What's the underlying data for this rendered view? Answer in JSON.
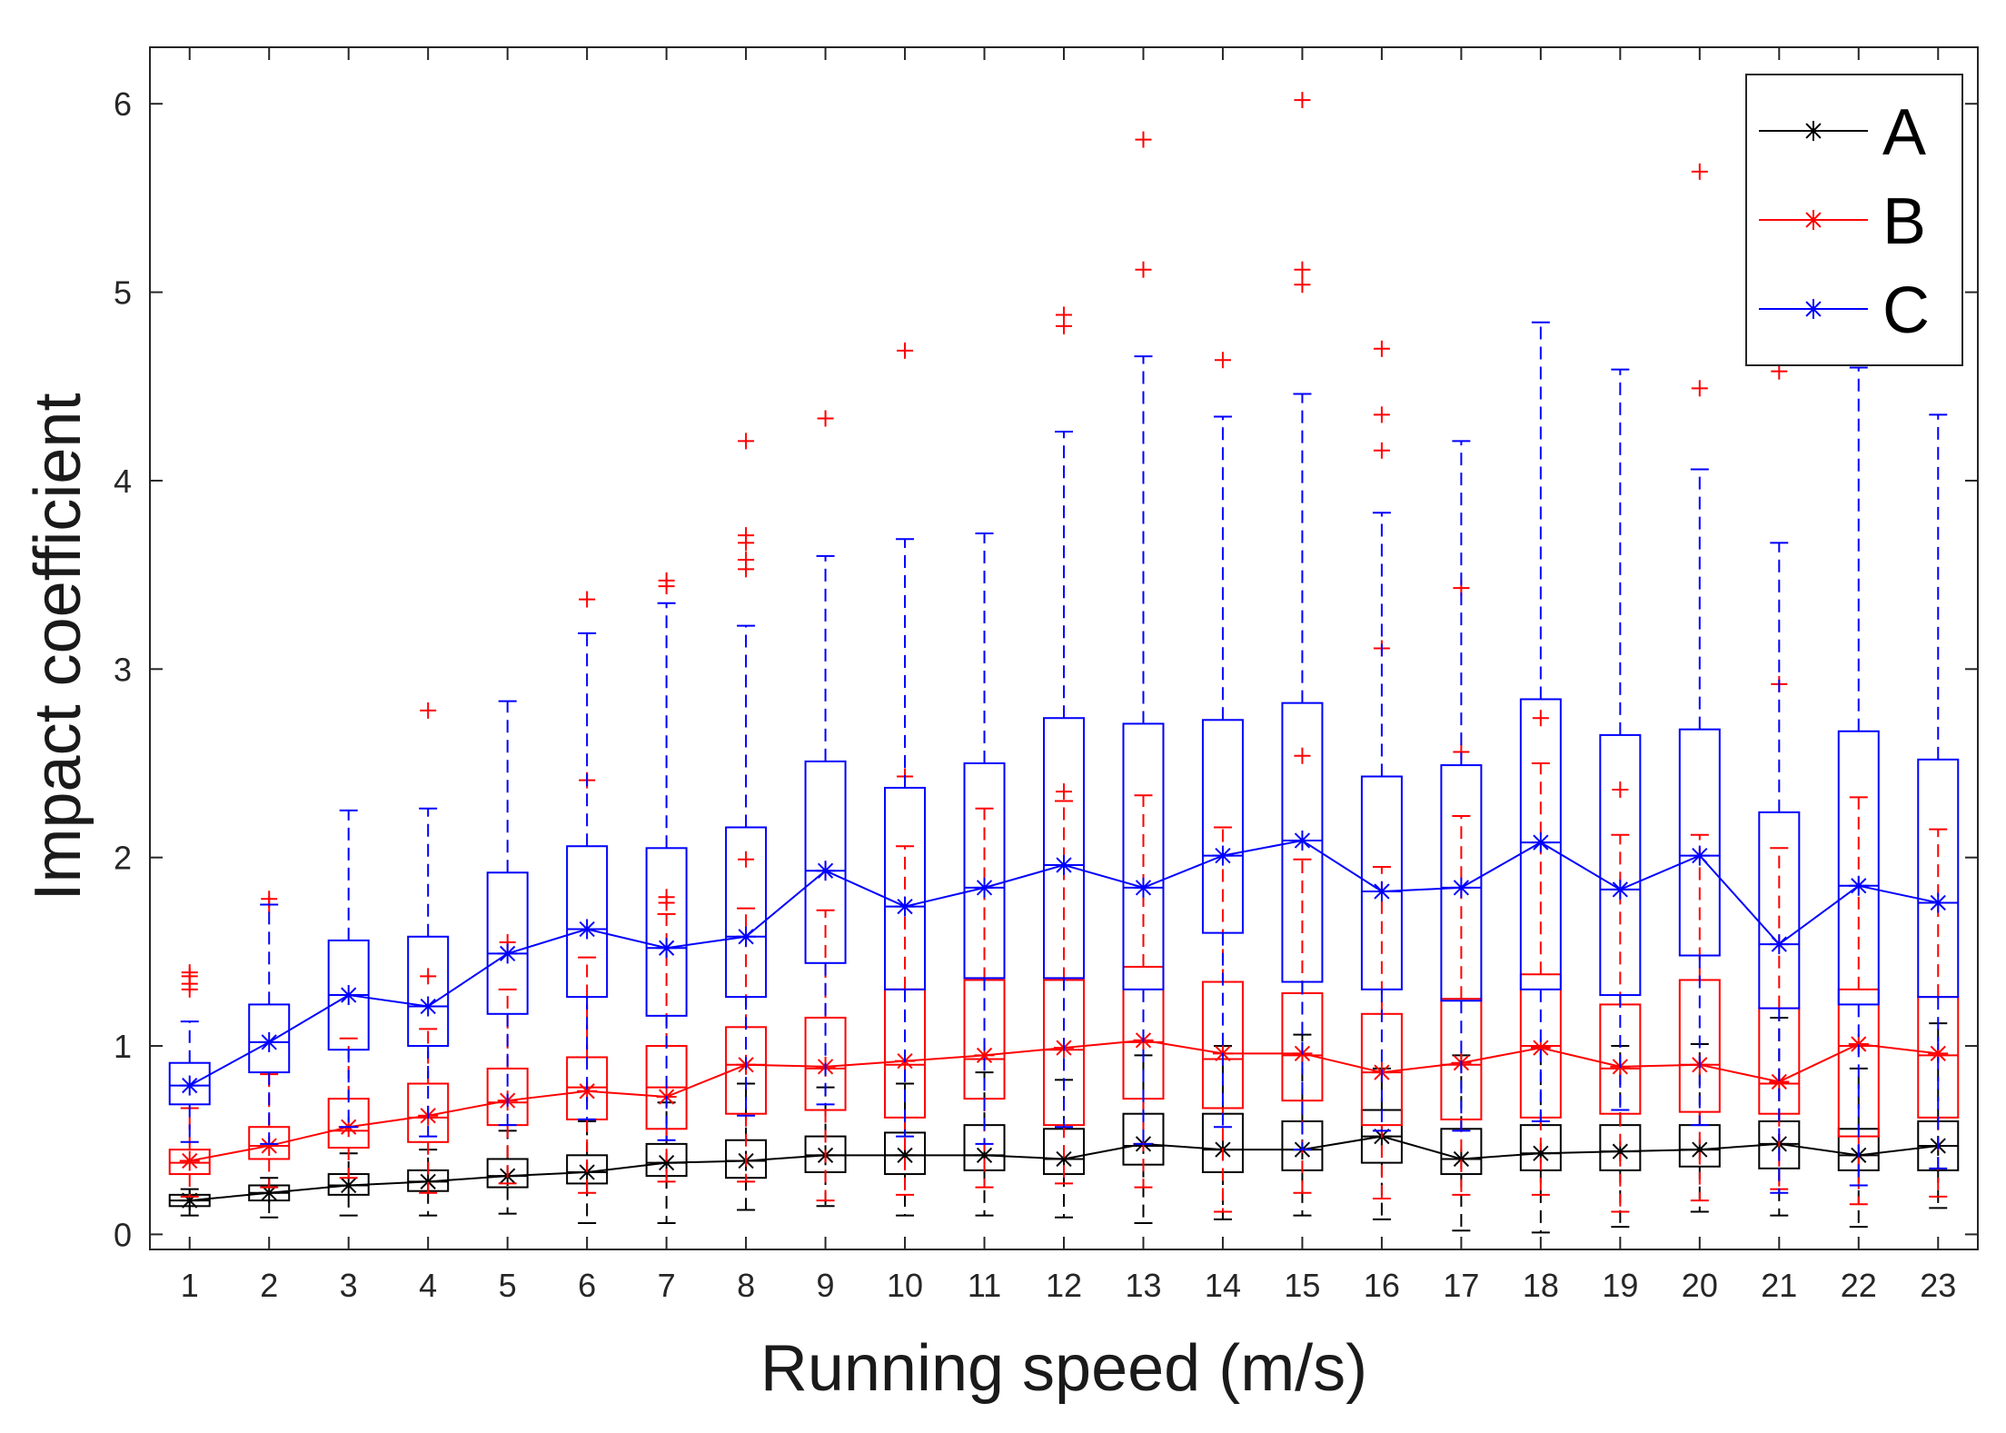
{
  "chart_data": {
    "type": "box",
    "xlabel": "Running speed (m/s)",
    "ylabel": "Impact coefficient",
    "categories": [
      "1",
      "2",
      "3",
      "4",
      "5",
      "6",
      "7",
      "8",
      "9",
      "10",
      "11",
      "12",
      "13",
      "14",
      "15",
      "16",
      "17",
      "18",
      "19",
      "20",
      "21",
      "22",
      "23"
    ],
    "xlim": [
      0.5,
      23.5
    ],
    "ylim": [
      -0.08,
      6.3
    ],
    "yticks": [
      0,
      1,
      2,
      3,
      4,
      5,
      6
    ],
    "ytick_labels": [
      "0",
      "1",
      "2",
      "3",
      "4",
      "5",
      "6"
    ],
    "grid": false,
    "legend_position": "top-right",
    "marker": "asterisk",
    "series": [
      {
        "name": "A",
        "color": "#000000",
        "mean": [
          0.18,
          0.22,
          0.26,
          0.28,
          0.31,
          0.33,
          0.38,
          0.39,
          0.42,
          0.42,
          0.42,
          0.4,
          0.48,
          0.45,
          0.45,
          0.52,
          0.4,
          0.43,
          0.44,
          0.45,
          0.48,
          0.42,
          0.47
        ],
        "q1": [
          0.15,
          0.18,
          0.21,
          0.23,
          0.25,
          0.27,
          0.31,
          0.3,
          0.33,
          0.32,
          0.34,
          0.32,
          0.37,
          0.33,
          0.34,
          0.38,
          0.32,
          0.34,
          0.34,
          0.36,
          0.35,
          0.34,
          0.34
        ],
        "median": [
          0.18,
          0.22,
          0.26,
          0.28,
          0.31,
          0.33,
          0.38,
          0.39,
          0.42,
          0.42,
          0.42,
          0.4,
          0.47,
          0.45,
          0.45,
          0.52,
          0.4,
          0.43,
          0.44,
          0.45,
          0.48,
          0.42,
          0.47
        ],
        "q3": [
          0.21,
          0.26,
          0.32,
          0.34,
          0.4,
          0.42,
          0.48,
          0.5,
          0.52,
          0.54,
          0.58,
          0.56,
          0.64,
          0.64,
          0.6,
          0.66,
          0.56,
          0.58,
          0.58,
          0.58,
          0.6,
          0.56,
          0.6
        ],
        "whisker_low": [
          0.1,
          0.09,
          0.1,
          0.1,
          0.11,
          0.06,
          0.06,
          0.13,
          0.15,
          0.1,
          0.1,
          0.09,
          0.06,
          0.08,
          0.1,
          0.08,
          0.02,
          0.01,
          0.04,
          0.12,
          0.1,
          0.04,
          0.14
        ],
        "whisker_high": [
          0.24,
          0.3,
          0.43,
          0.45,
          0.55,
          0.6,
          0.7,
          0.8,
          0.78,
          0.8,
          0.86,
          0.82,
          0.95,
          1.0,
          1.06,
          0.88,
          0.95,
          0.99,
          1.0,
          1.01,
          1.15,
          0.88,
          1.12
        ],
        "outliers": [
          [],
          [],
          [],
          [],
          [],
          [],
          [],
          [],
          [],
          [],
          [],
          [],
          [],
          [],
          [],
          [],
          [],
          [],
          [],
          [],
          [],
          [],
          []
        ]
      },
      {
        "name": "B",
        "color": "#ff0000",
        "mean": [
          0.39,
          0.47,
          0.57,
          0.63,
          0.71,
          0.76,
          0.73,
          0.9,
          0.89,
          0.92,
          0.95,
          0.99,
          1.03,
          0.96,
          0.96,
          0.86,
          0.91,
          0.99,
          0.89,
          0.9,
          0.81,
          1.01,
          0.96
        ],
        "q1": [
          0.32,
          0.4,
          0.46,
          0.49,
          0.58,
          0.61,
          0.56,
          0.64,
          0.66,
          0.62,
          0.72,
          0.58,
          0.72,
          0.67,
          0.71,
          0.58,
          0.61,
          0.62,
          0.64,
          0.65,
          0.64,
          0.52,
          0.62
        ],
        "median": [
          0.38,
          0.47,
          0.55,
          0.62,
          0.7,
          0.78,
          0.78,
          0.9,
          0.88,
          0.9,
          0.93,
          0.98,
          1.02,
          0.93,
          0.95,
          0.86,
          0.9,
          1.0,
          0.88,
          0.9,
          0.8,
          1.0,
          0.95
        ],
        "q3": [
          0.45,
          0.57,
          0.72,
          0.8,
          0.88,
          0.94,
          1.0,
          1.1,
          1.15,
          1.3,
          1.35,
          1.35,
          1.42,
          1.34,
          1.28,
          1.17,
          1.25,
          1.38,
          1.22,
          1.35,
          1.2,
          1.3,
          1.26
        ],
        "whisker_low": [
          0.2,
          0.25,
          0.3,
          0.22,
          0.27,
          0.22,
          0.28,
          0.28,
          0.18,
          0.21,
          0.25,
          0.27,
          0.25,
          0.12,
          0.22,
          0.19,
          0.21,
          0.21,
          0.12,
          0.18,
          0.24,
          0.16,
          0.2
        ],
        "whisker_high": [
          0.67,
          0.85,
          1.04,
          1.09,
          1.3,
          1.47,
          1.7,
          1.73,
          1.72,
          2.06,
          2.26,
          2.3,
          2.33,
          2.16,
          1.99,
          1.95,
          2.22,
          2.5,
          2.12,
          2.12,
          2.05,
          2.32,
          2.15
        ],
        "outliers": [
          [
            1.3,
            1.33,
            1.37,
            1.39
          ],
          [
            1.75,
            1.78
          ],
          [],
          [
            1.37,
            2.78
          ],
          [
            1.55
          ],
          [
            2.41,
            3.37
          ],
          [
            1.76,
            1.79,
            3.44,
            3.47
          ],
          [
            1.99,
            3.53,
            3.58,
            3.67,
            3.71,
            4.21
          ],
          [
            1.93,
            4.33
          ],
          [
            2.43,
            4.69
          ],
          [],
          [
            2.35,
            4.82,
            4.88
          ],
          [
            5.12,
            5.81
          ],
          [
            4.64
          ],
          [
            2.54,
            5.04,
            5.12,
            6.02
          ],
          [
            3.11,
            4.16,
            4.35,
            4.7
          ],
          [
            2.56,
            3.43
          ],
          [
            2.74
          ],
          [
            2.36
          ],
          [
            4.49,
            5.64
          ],
          [
            2.92,
            4.58
          ],
          [],
          []
        ]
      },
      {
        "name": "C",
        "color": "#0000ff",
        "mean": [
          0.79,
          1.02,
          1.27,
          1.21,
          1.49,
          1.62,
          1.52,
          1.58,
          1.93,
          1.74,
          1.84,
          1.96,
          1.84,
          2.01,
          2.09,
          1.82,
          1.84,
          2.08,
          1.83,
          2.01,
          1.54,
          1.85,
          1.76
        ],
        "q1": [
          0.69,
          0.86,
          0.98,
          1.0,
          1.17,
          1.26,
          1.16,
          1.26,
          1.44,
          1.3,
          1.36,
          1.36,
          1.3,
          1.6,
          1.34,
          1.3,
          1.24,
          1.3,
          1.27,
          1.48,
          1.2,
          1.22,
          1.26
        ],
        "median": [
          0.79,
          1.02,
          1.27,
          1.21,
          1.49,
          1.62,
          1.52,
          1.58,
          1.93,
          1.74,
          1.84,
          1.96,
          1.84,
          2.01,
          2.09,
          1.82,
          1.84,
          2.08,
          1.83,
          2.01,
          1.54,
          1.85,
          1.76
        ],
        "q3": [
          0.91,
          1.22,
          1.56,
          1.58,
          1.92,
          2.06,
          2.05,
          2.16,
          2.51,
          2.37,
          2.5,
          2.74,
          2.71,
          2.73,
          2.82,
          2.43,
          2.49,
          2.84,
          2.65,
          2.68,
          2.24,
          2.67,
          2.52
        ],
        "whisker_low": [
          0.49,
          0.48,
          0.57,
          0.52,
          0.58,
          0.61,
          0.5,
          0.63,
          0.69,
          0.52,
          0.48,
          0.57,
          0.48,
          0.57,
          0.45,
          0.55,
          0.55,
          0.6,
          0.66,
          0.58,
          0.22,
          0.26,
          0.35
        ],
        "whisker_high": [
          1.13,
          1.75,
          2.25,
          2.26,
          2.83,
          3.19,
          3.35,
          3.23,
          3.6,
          3.69,
          3.72,
          4.26,
          4.66,
          4.34,
          4.46,
          3.83,
          4.21,
          4.84,
          4.59,
          4.06,
          3.67,
          4.6,
          4.35
        ],
        "outliers": [
          [],
          [],
          [],
          [],
          [],
          [],
          [],
          [],
          [],
          [],
          [],
          [],
          [],
          [],
          [],
          [],
          [],
          [],
          [],
          [],
          [],
          [],
          []
        ]
      }
    ]
  }
}
